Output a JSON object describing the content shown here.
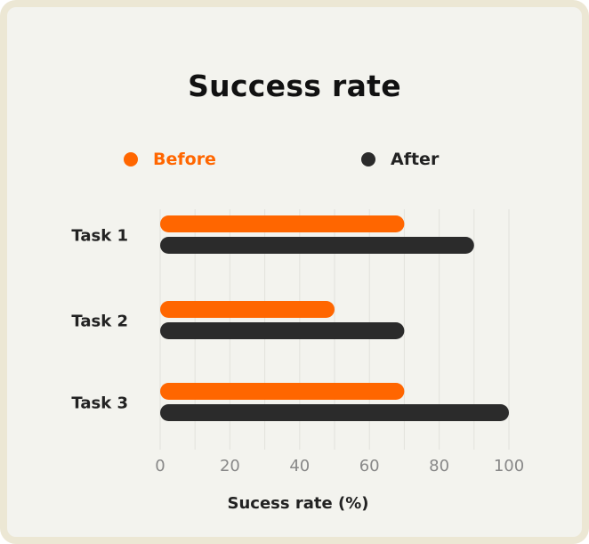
{
  "colors": {
    "before": "#ff6600",
    "after": "#2b2b2b",
    "grid": "#e2e2dc",
    "tick": "#888888",
    "label": "#222222"
  },
  "chart_data": {
    "type": "bar",
    "orientation": "horizontal",
    "title": "Success rate",
    "xlabel": "Sucess rate (%)",
    "ylabel": "",
    "categories": [
      "Task 1",
      "Task 2",
      "Task 3"
    ],
    "series": [
      {
        "name": "Before",
        "values": [
          70,
          50,
          70
        ]
      },
      {
        "name": "After",
        "values": [
          90,
          70,
          100
        ]
      }
    ],
    "xlim": [
      0,
      100
    ],
    "xticks": [
      "0",
      "20",
      "40",
      "60",
      "80",
      "100"
    ],
    "grid": "vertical",
    "legend": "top"
  }
}
